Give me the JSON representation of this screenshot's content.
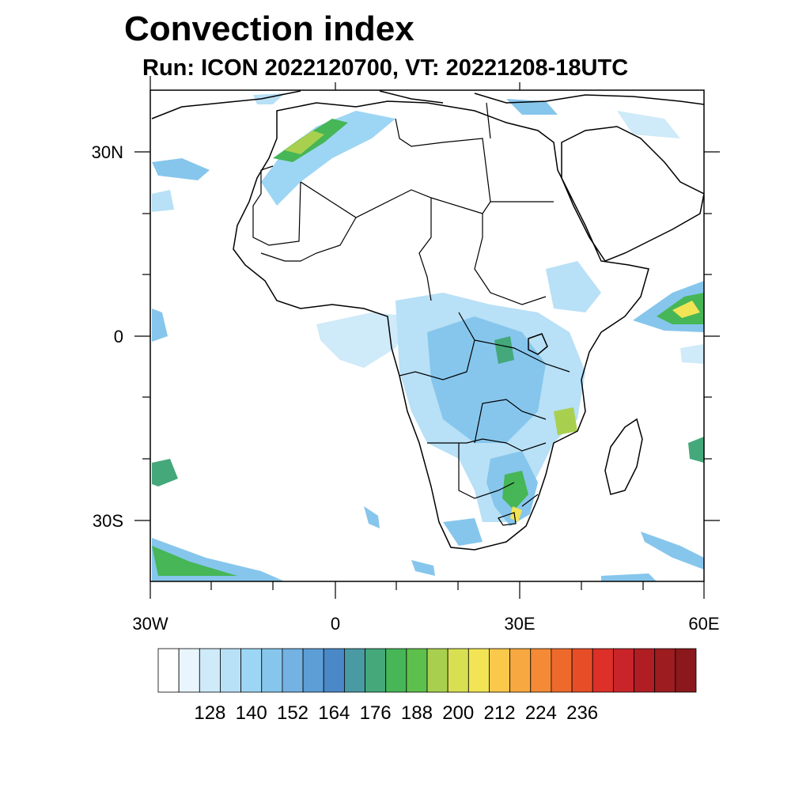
{
  "title": "Convection index",
  "subtitle": "Run: ICON 2022120700,  VT: 20221208-18UTC",
  "lat_labels": [
    "30N",
    "0",
    "30S"
  ],
  "lon_labels": [
    "30W",
    "0",
    "30E",
    "60E"
  ],
  "colorbar": {
    "labels": [
      "128",
      "140",
      "152",
      "164",
      "176",
      "188",
      "200",
      "212",
      "224",
      "236"
    ],
    "colors": [
      "#ffffff",
      "#e8f5fc",
      "#cfeaf8",
      "#b8e0f6",
      "#9dd6f4",
      "#86c6ec",
      "#73b2e2",
      "#5d9ed6",
      "#4a88c8",
      "#4a9aa4",
      "#44a87a",
      "#46b656",
      "#5ec04c",
      "#a8d04e",
      "#d8e052",
      "#f2e454",
      "#fac84a",
      "#f8a840",
      "#f48a36",
      "#ee6a2c",
      "#e64e28",
      "#dc3028",
      "#c8242a",
      "#b01e24",
      "#9c1c20",
      "#8a181c"
    ]
  },
  "chart_data": {
    "type": "heatmap",
    "title": "Convection index",
    "subtitle": "Run: ICON 2022120700,  VT: 20221208-18UTC",
    "x_range_deg_lon": [
      -30,
      60
    ],
    "y_range_deg_lat": [
      -40,
      40
    ],
    "x_ticks": [
      "30W",
      "0",
      "30E",
      "60E"
    ],
    "y_ticks": [
      "30N",
      "0",
      "30S"
    ],
    "colorbar_ticks": [
      128,
      140,
      152,
      164,
      176,
      188,
      200,
      212,
      224,
      236
    ]
  }
}
